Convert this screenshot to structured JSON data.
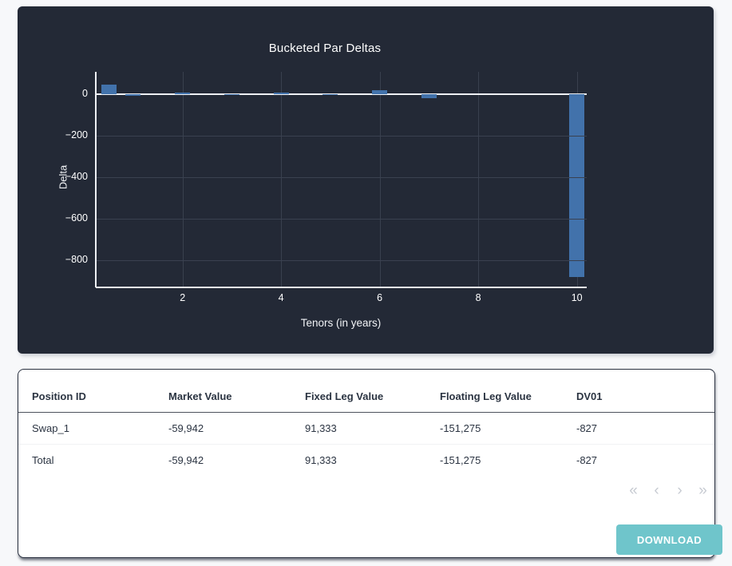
{
  "chart_data": {
    "type": "bar",
    "title": "Bucketed Par Deltas",
    "xlabel": "Tenors (in years)",
    "ylabel": "Delta",
    "x": [
      0.5,
      1,
      2,
      3,
      4,
      5,
      6,
      7,
      10
    ],
    "values": [
      45,
      -10,
      5,
      -3,
      4,
      -3,
      16,
      -20,
      -880
    ],
    "xticks": [
      2,
      4,
      6,
      8,
      10
    ],
    "yticks": [
      0,
      -200,
      -400,
      -600,
      -800
    ],
    "xlim": [
      0.24,
      10.2
    ],
    "ylim": [
      -930,
      106
    ],
    "grid": true,
    "legend": "none",
    "bar_color": "#4272ab"
  },
  "colors": {
    "panel_bg": "#232936",
    "bar": "#4272ab",
    "accent": "#6fc5cb",
    "page_bg": "#f7f8fa"
  },
  "table": {
    "columns": [
      "Position ID",
      "Market Value",
      "Fixed Leg Value",
      "Floating Leg Value",
      "DV01"
    ],
    "rows": [
      [
        "Swap_1",
        "-59,942",
        "91,333",
        "-151,275",
        "-827"
      ],
      [
        "Total",
        "-59,942",
        "91,333",
        "-151,275",
        "-827"
      ]
    ]
  },
  "pagination": {
    "first": "«",
    "prev": "‹",
    "next": "›",
    "last": "»"
  },
  "download_label": "DOWNLOAD"
}
